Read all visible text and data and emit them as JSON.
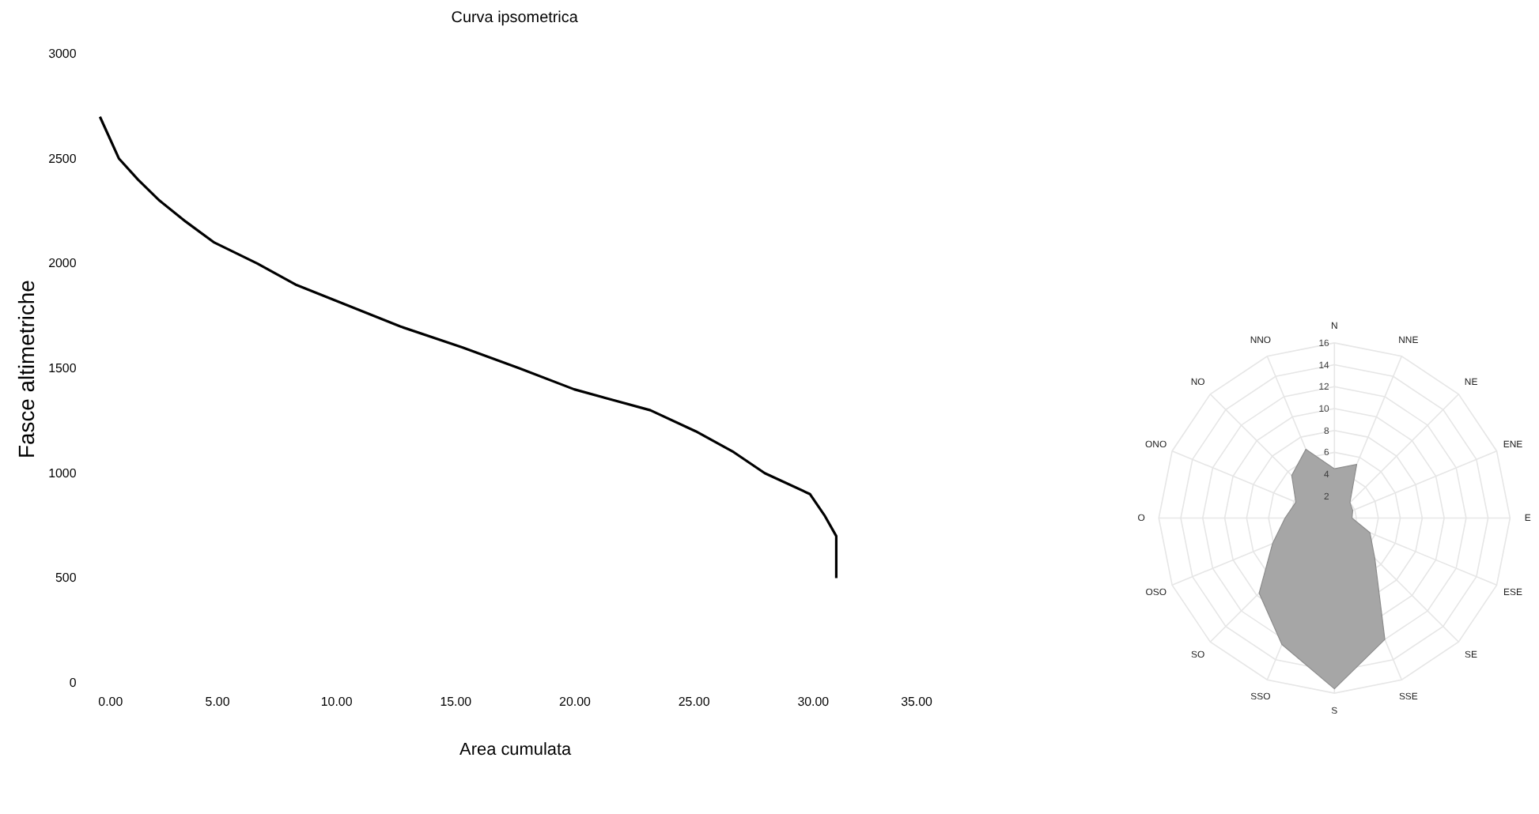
{
  "chart_data": [
    {
      "type": "line",
      "title": "Curva ipsometrica",
      "xlabel": "Area cumulata",
      "ylabel": "Fasce altimetriche",
      "x": [
        0.1,
        0.5,
        0.9,
        1.7,
        2.6,
        3.7,
        4.9,
        6.7,
        8.3,
        10.5,
        12.7,
        15.3,
        17.7,
        20.0,
        23.2,
        25.1,
        26.7,
        28.0,
        29.9,
        30.5,
        31.0,
        31.0,
        31.0
      ],
      "series": [
        {
          "color": "#000000",
          "values": [
            2700,
            2600,
            2500,
            2400,
            2300,
            2200,
            2100,
            2000,
            1900,
            1800,
            1700,
            1600,
            1500,
            1400,
            1300,
            1200,
            1100,
            1000,
            900,
            800,
            700,
            600,
            500
          ]
        }
      ],
      "xlim": [
        0,
        35
      ],
      "xticks": [
        {
          "value": 0,
          "label": "0.00"
        },
        {
          "value": 5,
          "label": "5.00"
        },
        {
          "value": 10,
          "label": "10.00"
        },
        {
          "value": 15,
          "label": "15.00"
        },
        {
          "value": 20,
          "label": "20.00"
        },
        {
          "value": 25,
          "label": "25.00"
        },
        {
          "value": 30,
          "label": "30.00"
        },
        {
          "value": 35,
          "label": "35.00"
        }
      ],
      "ylim": [
        0,
        3000
      ],
      "yticks": [
        0,
        500,
        1000,
        1500,
        2000,
        2500,
        3000
      ],
      "grid": false,
      "line_style": "solid",
      "marker": "none"
    },
    {
      "type": "radar",
      "categories": [
        "N",
        "NNE",
        "NE",
        "ENE",
        "E",
        "ESE",
        "SE",
        "SSE",
        "S",
        "SSO",
        "SO",
        "OSO",
        "O",
        "ONO",
        "NO",
        "NNO"
      ],
      "series": [
        {
          "color": "#a6a6a6",
          "values": [
            4.5,
            5.3,
            2,
            1.8,
            1.6,
            3.5,
            5.2,
            12,
            15.6,
            12.5,
            9.7,
            6.1,
            4.5,
            3.8,
            5.5,
            6.8
          ]
        }
      ],
      "ylim": [
        0,
        16
      ],
      "yticks": [
        2,
        4,
        6,
        8,
        10,
        12,
        14,
        16
      ],
      "grid": true
    }
  ]
}
